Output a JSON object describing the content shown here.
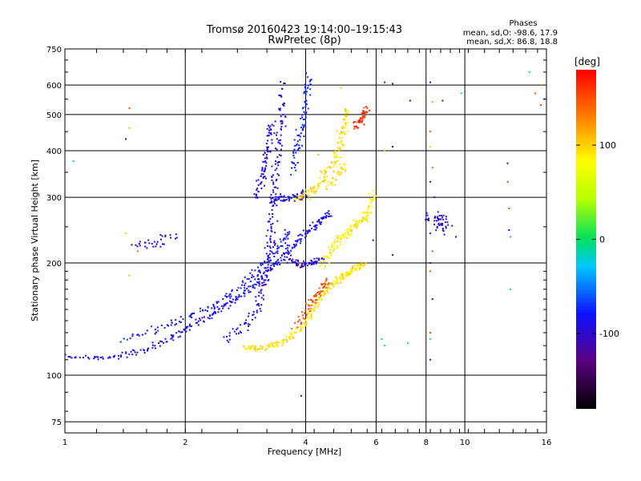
{
  "chart_data": {
    "type": "scatter",
    "title": "Tromsø 20160423 19:14:00–19:15:43",
    "subtitle": "RwPretec (8p)",
    "xlabel": "Frequency [MHz]",
    "ylabel": "Stationary phase Virtual Height [km]",
    "x_scale": "log",
    "y_scale": "log",
    "xlim": [
      1,
      16
    ],
    "ylim": [
      70,
      750
    ],
    "x_ticks": [
      1,
      2,
      4,
      6,
      8,
      10,
      16
    ],
    "x_tick_labels": [
      "1",
      "2",
      "4",
      "6",
      "8",
      "10",
      "16"
    ],
    "y_ticks": [
      75,
      100,
      200,
      300,
      400,
      500,
      600,
      750
    ],
    "y_tick_labels": [
      "75",
      "100",
      "200",
      "300",
      "400",
      "500",
      "600",
      "750"
    ],
    "grid": true,
    "stats": {
      "heading": "Phases",
      "o_line": "mean, sd,O: -98.6, 17.9",
      "x_line": "mean, sd,X: 86.8, 18.8"
    },
    "colorbar": {
      "label": "[deg]",
      "range": [
        -180,
        180
      ],
      "tick_values": [
        100,
        0,
        -100
      ],
      "tick_labels": [
        "100",
        "0",
        "-100"
      ]
    },
    "traces": [
      {
        "mode": "O",
        "phase": -105,
        "spread": [
          0.012,
          0.008
        ],
        "points": [
          [
            1.0,
            112
          ],
          [
            1.2,
            111
          ],
          [
            1.4,
            113
          ],
          [
            1.6,
            117
          ],
          [
            1.8,
            124
          ],
          [
            2.0,
            132
          ],
          [
            2.2,
            140
          ],
          [
            2.4,
            148
          ],
          [
            2.6,
            156
          ],
          [
            2.8,
            165
          ],
          [
            3.0,
            175
          ],
          [
            3.2,
            188
          ],
          [
            3.4,
            200
          ],
          [
            3.6,
            212
          ],
          [
            3.8,
            225
          ],
          [
            4.0,
            238
          ],
          [
            4.2,
            250
          ],
          [
            4.4,
            262
          ],
          [
            4.6,
            272
          ]
        ]
      },
      {
        "mode": "O",
        "phase": -100,
        "spread": [
          0.015,
          0.012
        ],
        "points": [
          [
            1.4,
            125
          ],
          [
            1.7,
            133
          ],
          [
            2.0,
            142
          ],
          [
            2.3,
            152
          ],
          [
            2.6,
            165
          ],
          [
            2.9,
            180
          ],
          [
            3.1,
            195
          ],
          [
            3.3,
            210
          ],
          [
            3.5,
            228
          ],
          [
            3.7,
            245
          ]
        ]
      },
      {
        "mode": "O",
        "phase": -110,
        "spread": [
          0.012,
          0.015
        ],
        "points": [
          [
            2.5,
            125
          ],
          [
            2.8,
            135
          ],
          [
            3.0,
            150
          ],
          [
            3.1,
            170
          ],
          [
            3.2,
            190
          ],
          [
            3.25,
            220
          ],
          [
            3.3,
            250
          ],
          [
            3.3,
            290
          ],
          [
            3.35,
            330
          ],
          [
            3.4,
            380
          ],
          [
            3.45,
            450
          ],
          [
            3.5,
            520
          ],
          [
            3.5,
            610
          ]
        ]
      },
      {
        "mode": "O",
        "phase": -112,
        "spread": [
          0.01,
          0.015
        ],
        "points": [
          [
            3.0,
            300
          ],
          [
            3.1,
            330
          ],
          [
            3.15,
            360
          ],
          [
            3.2,
            400
          ],
          [
            3.25,
            440
          ],
          [
            3.3,
            480
          ]
        ]
      },
      {
        "mode": "O",
        "phase": -105,
        "spread": [
          0.012,
          0.012
        ],
        "points": [
          [
            3.3,
            290
          ],
          [
            3.5,
            300
          ],
          [
            3.7,
            300
          ],
          [
            3.9,
            300
          ],
          [
            4.0,
            310
          ]
        ]
      },
      {
        "mode": "O",
        "phase": -95,
        "spread": [
          0.012,
          0.015
        ],
        "points": [
          [
            3.7,
            350
          ],
          [
            3.8,
            400
          ],
          [
            3.9,
            450
          ],
          [
            4.0,
            500
          ],
          [
            4.0,
            580
          ],
          [
            4.1,
            630
          ]
        ]
      },
      {
        "mode": "O",
        "phase": -115,
        "spread": [
          0.012,
          0.01
        ],
        "points": [
          [
            3.6,
            205
          ],
          [
            3.8,
            198
          ],
          [
            4.0,
            197
          ],
          [
            4.2,
            200
          ],
          [
            4.4,
            205
          ]
        ]
      },
      {
        "mode": "O",
        "phase": -108,
        "spread": [
          0.02,
          0.02
        ],
        "points": [
          [
            1.5,
            215
          ],
          [
            1.7,
            228
          ],
          [
            1.9,
            240
          ]
        ]
      },
      {
        "mode": "O",
        "phase": -115,
        "spread": [
          0.02,
          0.03
        ],
        "points": [
          [
            8.2,
            265
          ],
          [
            8.5,
            260
          ],
          [
            8.8,
            255
          ],
          [
            9.0,
            250
          ]
        ]
      },
      {
        "mode": "X",
        "phase": 95,
        "spread": [
          0.012,
          0.008
        ],
        "points": [
          [
            2.8,
            118
          ],
          [
            3.0,
            118
          ],
          [
            3.2,
            119
          ],
          [
            3.4,
            121
          ],
          [
            3.6,
            125
          ],
          [
            3.8,
            131
          ],
          [
            4.0,
            140
          ],
          [
            4.2,
            150
          ],
          [
            4.4,
            162
          ],
          [
            4.6,
            172
          ],
          [
            4.8,
            180
          ],
          [
            5.0,
            185
          ],
          [
            5.2,
            190
          ],
          [
            5.4,
            195
          ],
          [
            5.6,
            200
          ]
        ]
      },
      {
        "mode": "X",
        "phase": 90,
        "spread": [
          0.012,
          0.015
        ],
        "points": [
          [
            4.4,
            195
          ],
          [
            4.6,
            215
          ],
          [
            4.8,
            230
          ],
          [
            5.0,
            238
          ],
          [
            5.2,
            245
          ],
          [
            5.4,
            255
          ],
          [
            5.6,
            265
          ],
          [
            5.8,
            280
          ],
          [
            5.9,
            310
          ]
        ]
      },
      {
        "mode": "X",
        "phase": 98,
        "spread": [
          0.012,
          0.012
        ],
        "points": [
          [
            3.8,
            300
          ],
          [
            4.0,
            305
          ],
          [
            4.2,
            315
          ],
          [
            4.4,
            335
          ],
          [
            4.6,
            360
          ],
          [
            4.8,
            390
          ],
          [
            4.9,
            430
          ],
          [
            5.0,
            470
          ],
          [
            5.1,
            520
          ]
        ]
      },
      {
        "mode": "X",
        "phase": 150,
        "spread": [
          0.012,
          0.01
        ],
        "points": [
          [
            3.8,
            135
          ],
          [
            4.0,
            150
          ],
          [
            4.2,
            160
          ],
          [
            4.4,
            172
          ],
          [
            4.6,
            180
          ]
        ]
      },
      {
        "mode": "X",
        "phase": 160,
        "spread": [
          0.01,
          0.012
        ],
        "points": [
          [
            5.3,
            460
          ],
          [
            5.5,
            480
          ],
          [
            5.6,
            500
          ],
          [
            5.7,
            520
          ]
        ]
      },
      {
        "mode": "X",
        "phase": 95,
        "spread": [
          0.012,
          0.012
        ],
        "points": [
          [
            4.6,
            320
          ],
          [
            4.8,
            345
          ],
          [
            5.0,
            370
          ]
        ]
      }
    ],
    "extra_points": [
      {
        "x": 1.45,
        "y": 520,
        "phase": 150
      },
      {
        "x": 1.45,
        "y": 460,
        "phase": 110
      },
      {
        "x": 1.42,
        "y": 430,
        "phase": -140
      },
      {
        "x": 1.45,
        "y": 185,
        "phase": 110
      },
      {
        "x": 1.42,
        "y": 240,
        "phase": 100
      },
      {
        "x": 1.52,
        "y": 215,
        "phase": 140
      },
      {
        "x": 3.9,
        "y": 88,
        "phase": -130
      },
      {
        "x": 6.3,
        "y": 610,
        "phase": -90
      },
      {
        "x": 6.6,
        "y": 605,
        "phase": -100
      },
      {
        "x": 7.3,
        "y": 545,
        "phase": -100
      },
      {
        "x": 6.3,
        "y": 400,
        "phase": 110
      },
      {
        "x": 6.6,
        "y": 410,
        "phase": -100
      },
      {
        "x": 6.6,
        "y": 210,
        "phase": -120
      },
      {
        "x": 6.2,
        "y": 125,
        "phase": -20
      },
      {
        "x": 6.3,
        "y": 120,
        "phase": -30
      },
      {
        "x": 7.2,
        "y": 122,
        "phase": -40
      },
      {
        "x": 8.2,
        "y": 610,
        "phase": -100
      },
      {
        "x": 8.3,
        "y": 540,
        "phase": 20
      },
      {
        "x": 8.8,
        "y": 545,
        "phase": -100
      },
      {
        "x": 8.2,
        "y": 450,
        "phase": 150
      },
      {
        "x": 8.2,
        "y": 410,
        "phase": 100
      },
      {
        "x": 8.3,
        "y": 360,
        "phase": 140
      },
      {
        "x": 8.2,
        "y": 330,
        "phase": -110
      },
      {
        "x": 8.4,
        "y": 300,
        "phase": -110
      },
      {
        "x": 8.2,
        "y": 240,
        "phase": -100
      },
      {
        "x": 8.3,
        "y": 215,
        "phase": 150
      },
      {
        "x": 8.2,
        "y": 200,
        "phase": -120
      },
      {
        "x": 8.2,
        "y": 190,
        "phase": 150
      },
      {
        "x": 8.3,
        "y": 160,
        "phase": -100
      },
      {
        "x": 8.2,
        "y": 130,
        "phase": 150
      },
      {
        "x": 8.2,
        "y": 125,
        "phase": -30
      },
      {
        "x": 8.2,
        "y": 110,
        "phase": -100
      },
      {
        "x": 9.5,
        "y": 235,
        "phase": -110
      },
      {
        "x": 9.8,
        "y": 570,
        "phase": -10
      },
      {
        "x": 12.8,
        "y": 370,
        "phase": -110
      },
      {
        "x": 12.8,
        "y": 330,
        "phase": 150
      },
      {
        "x": 12.9,
        "y": 280,
        "phase": 150
      },
      {
        "x": 12.9,
        "y": 245,
        "phase": -100
      },
      {
        "x": 13.0,
        "y": 235,
        "phase": -20
      },
      {
        "x": 13.0,
        "y": 170,
        "phase": -20
      },
      {
        "x": 14.5,
        "y": 650,
        "phase": -40
      },
      {
        "x": 15.0,
        "y": 570,
        "phase": 150
      },
      {
        "x": 15.5,
        "y": 600,
        "phase": 140
      },
      {
        "x": 15.8,
        "y": 550,
        "phase": -100
      },
      {
        "x": 15.5,
        "y": 530,
        "phase": 160
      },
      {
        "x": 4.3,
        "y": 390,
        "phase": 110
      },
      {
        "x": 4.9,
        "y": 590,
        "phase": 110
      },
      {
        "x": 5.6,
        "y": 470,
        "phase": 170
      },
      {
        "x": 5.9,
        "y": 230,
        "phase": -100
      },
      {
        "x": 1.05,
        "y": 375,
        "phase": -30
      }
    ]
  }
}
